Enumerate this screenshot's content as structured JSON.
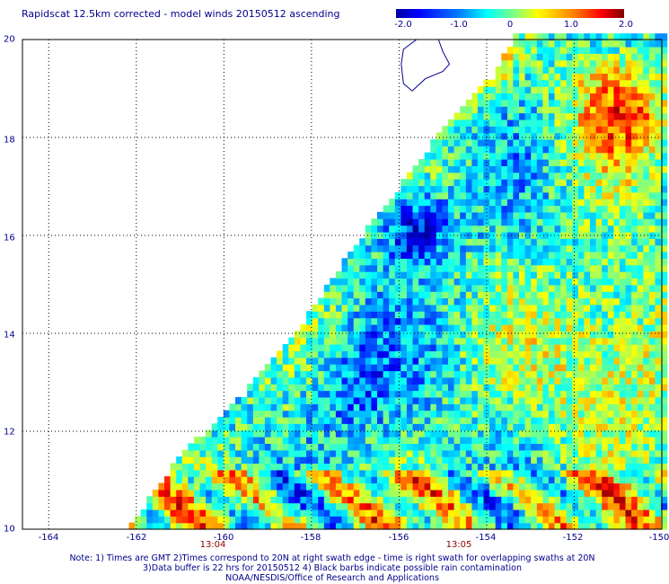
{
  "title": "Rapidscat 12.5km corrected - model winds 20150512 ascending",
  "colorbar": {
    "ticks": [
      "-2.0",
      "-1.0",
      "0",
      "1.0",
      "2.0"
    ],
    "min": -2.0,
    "max": 2.0,
    "colors": [
      "#0000a0",
      "#0000ff",
      "#0080ff",
      "#00ffff",
      "#80ff80",
      "#ffff00",
      "#ff8000",
      "#ff0000",
      "#800000"
    ]
  },
  "axes": {
    "lon_labels": [
      "-164",
      "-162",
      "-160",
      "-158",
      "-156",
      "-154",
      "-152",
      "-150"
    ],
    "lat_labels": [
      "10",
      "12",
      "14",
      "16",
      "18",
      "20"
    ],
    "lon_range": [
      -164.6,
      -150.0
    ],
    "lat_range": [
      10.0,
      20.0
    ]
  },
  "time_labels": [
    {
      "text": "13:04",
      "lon": -160.0
    },
    {
      "text": "13:05",
      "lon": -154.6
    }
  ],
  "swath_edge": [
    [
      -162.2,
      10.0
    ],
    [
      -161.0,
      11.5
    ],
    [
      -159.5,
      12.8
    ],
    [
      -158.2,
      14.2
    ],
    [
      -157.0,
      15.8
    ],
    [
      -155.8,
      17.2
    ],
    [
      -154.8,
      18.4
    ],
    [
      -153.8,
      19.3
    ],
    [
      -153.4,
      20.0
    ]
  ],
  "land": {
    "name": "Hawaii (Big Island) outline",
    "outline": [
      [
        -155.6,
        20.0
      ],
      [
        -155.9,
        19.8
      ],
      [
        -155.95,
        19.5
      ],
      [
        -155.9,
        19.1
      ],
      [
        -155.7,
        18.95
      ],
      [
        -155.4,
        19.2
      ],
      [
        -155.0,
        19.35
      ],
      [
        -154.85,
        19.5
      ],
      [
        -155.0,
        19.75
      ],
      [
        -155.1,
        20.0
      ]
    ]
  },
  "notes": [
    "Note: 1) Times are GMT 2)Times correspond to 20N at right swath edge - time is right swath for overlapping swaths at 20N",
    "3)Data buffer is 22 hrs for 20150512 4) Black barbs indicate possible rain contamination",
    "NOAA/NESDIS/Office of Research and Applications"
  ]
}
